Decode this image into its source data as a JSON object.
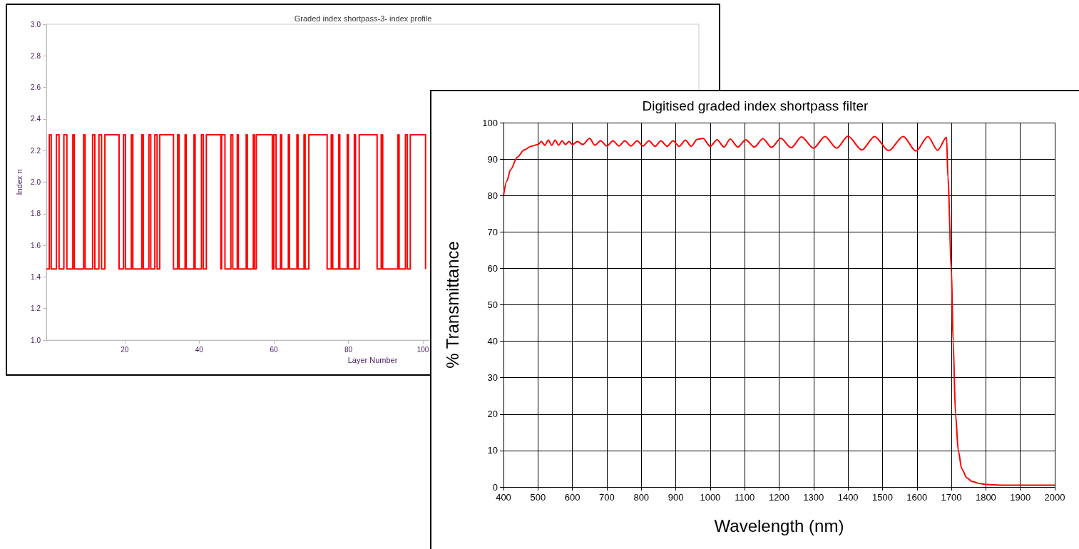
{
  "chart_data": [
    {
      "type": "step",
      "title": "Graded index shortpass-3- index profile",
      "xlabel": "Layer Number",
      "ylabel": "Index n",
      "color": "#ff0000",
      "x": [
        -1,
        -0.2,
        0.3,
        1.7,
        2.4,
        3.7,
        4.5,
        6.1,
        6.5,
        9.0,
        9.4,
        11.4,
        12.0,
        13.1,
        13.8,
        14.7,
        18.5,
        19.7,
        20.2,
        21.8,
        22.2,
        24.6,
        25.0,
        26.5,
        27.0,
        28.1,
        28.7,
        29.4,
        33.1,
        34.2,
        34.6,
        36.2,
        36.5,
        38.6,
        38.9,
        40.6,
        41.1,
        41.9,
        45.8,
        46.0,
        46.9,
        48.5,
        49.0,
        50.2,
        50.5,
        52.6,
        52.9,
        54.5,
        54.8,
        55.3,
        59.6,
        60.0,
        60.6,
        61.8,
        62.1,
        63.9,
        64.2,
        66.2,
        66.5,
        68.1,
        68.4,
        69.4,
        74.3,
        75.4,
        75.8,
        77.4,
        77.7,
        79.7,
        80.0,
        81.6,
        81.9,
        82.9,
        87.7,
        88.8,
        89.2,
        93.3,
        93.6,
        95.3,
        95.8,
        96.6,
        100.7
      ],
      "values": [
        1.45,
        2.3,
        1.45,
        2.3,
        1.45,
        2.3,
        1.45,
        2.3,
        1.45,
        2.3,
        1.45,
        2.3,
        1.45,
        2.3,
        1.45,
        2.3,
        1.45,
        2.3,
        1.45,
        2.3,
        1.45,
        2.3,
        1.45,
        2.3,
        1.45,
        2.3,
        1.45,
        2.3,
        1.45,
        2.3,
        1.45,
        2.3,
        1.45,
        2.3,
        1.45,
        2.3,
        1.45,
        2.3,
        1.45,
        2.3,
        1.45,
        2.3,
        1.45,
        2.3,
        1.45,
        2.3,
        1.45,
        2.3,
        1.45,
        2.3,
        1.45,
        2.3,
        1.45,
        2.3,
        1.45,
        2.3,
        1.45,
        2.3,
        1.45,
        2.3,
        1.45,
        2.3,
        1.45,
        2.3,
        1.45,
        2.3,
        1.45,
        2.3,
        1.45,
        2.3,
        1.45,
        2.3,
        1.45,
        2.3,
        1.45,
        2.3,
        1.45,
        2.3,
        1.45,
        2.3,
        1.45
      ],
      "xlim": [
        -1,
        174
      ],
      "xticks": [
        20,
        40,
        60,
        80,
        100
      ],
      "ylim": [
        1.0,
        3.0
      ],
      "yticks": [
        {
          "value": 1.0,
          "label": "1.0"
        },
        1.2,
        1.4,
        1.6,
        1.8,
        {
          "value": 2.0,
          "label": "2.0"
        },
        2.2,
        2.4,
        2.6,
        2.8,
        {
          "value": 3.0,
          "label": "3.0"
        }
      ],
      "grid": false
    },
    {
      "type": "line",
      "title": "Digitised graded index shortpass filter",
      "xlabel": "Wavelength (nm)",
      "ylabel": "% Transmittance",
      "color": "#ff0000",
      "x": [
        400,
        410,
        420,
        440,
        460,
        480,
        500,
        510,
        520,
        530,
        540,
        550,
        560,
        570,
        580,
        590,
        600,
        615,
        630,
        650,
        665,
        682,
        700,
        718,
        735,
        752,
        770,
        788,
        805,
        822,
        840,
        857,
        875,
        892,
        910,
        928,
        945,
        962,
        979,
        1000,
        1020,
        1040,
        1058,
        1080,
        1103,
        1128,
        1153,
        1178,
        1205,
        1235,
        1265,
        1300,
        1333,
        1367,
        1400,
        1440,
        1477,
        1518,
        1560,
        1597,
        1632,
        1660,
        1686,
        1690,
        1700,
        1705,
        1712,
        1720,
        1730,
        1745,
        1760,
        1780,
        1800,
        1850,
        2000
      ],
      "values": [
        80,
        84,
        87,
        90.5,
        92.5,
        93.5,
        94,
        94.8,
        93.8,
        95.2,
        93.8,
        95.2,
        93.8,
        95,
        94,
        94.8,
        94,
        94.8,
        94,
        95.7,
        93.8,
        95,
        93.6,
        95,
        93.6,
        95,
        93.6,
        95,
        93.6,
        95,
        93.5,
        95,
        93.5,
        95,
        93.5,
        95.2,
        93.5,
        95.4,
        95.7,
        93.5,
        95.3,
        93.3,
        95.5,
        93.3,
        95.3,
        93.3,
        95.6,
        93.2,
        95.7,
        93.1,
        96.1,
        93,
        96.2,
        93,
        96.3,
        92.5,
        96.2,
        92.3,
        96.2,
        92.2,
        96.2,
        92.4,
        96.0,
        85,
        60,
        40,
        20,
        10,
        5,
        2.5,
        1.5,
        1,
        0.7,
        0.5,
        0.5
      ],
      "xlim": [
        400,
        2000
      ],
      "xticks": [
        400,
        500,
        600,
        700,
        800,
        900,
        1000,
        1100,
        1200,
        1300,
        1400,
        1500,
        1600,
        1700,
        1800,
        1900,
        2000
      ],
      "ylim": [
        0,
        100
      ],
      "yticks": [
        0,
        10,
        20,
        30,
        40,
        50,
        60,
        70,
        80,
        90,
        100
      ],
      "grid": true
    }
  ]
}
